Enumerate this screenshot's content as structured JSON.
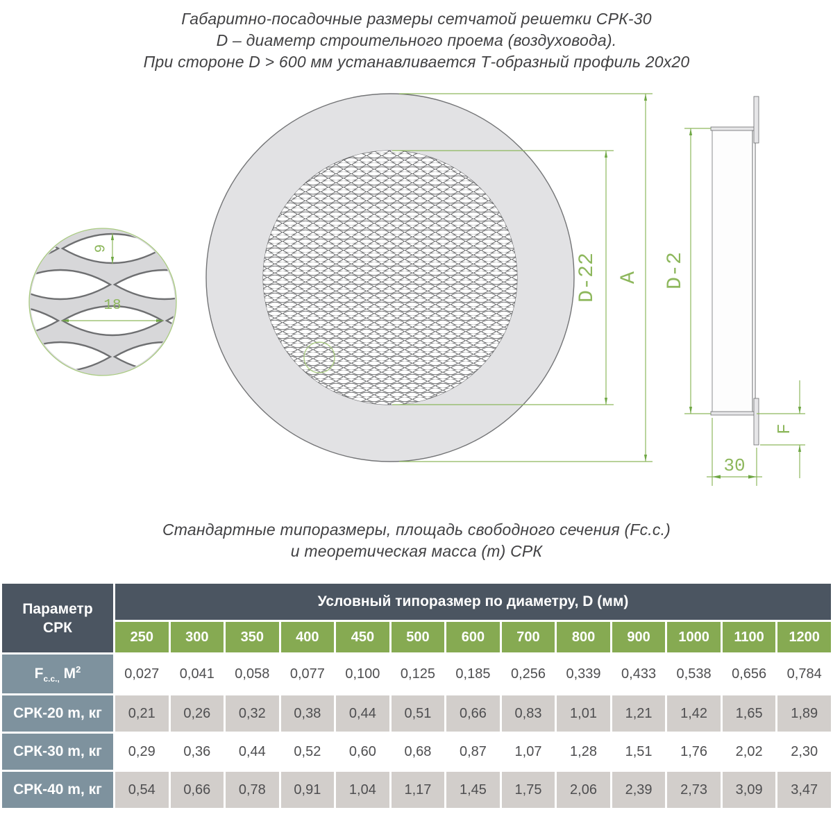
{
  "title": {
    "line1": "Габаритно-посадочные размеры сетчатой решетки СРК-30",
    "line2": "D – диаметр строительного проема (воздуховода).",
    "line3": "При стороне D > 600 мм устанавливается Т-образный профиль 20х20"
  },
  "subtitle": {
    "line1": "Стандартные типоразмеры, площадь свободного сечения (Fс.с.)",
    "line2": "и теоретическая масса (m) СРК"
  },
  "drawing": {
    "labels": {
      "mesh_cell_height": "9",
      "mesh_cell_width": "18",
      "inner_diameter": "D-22",
      "outer_diameter": "A",
      "duct_diameter": "D-2",
      "flange_height": "F",
      "depth": "30"
    },
    "colors": {
      "dimension_green": "#8db75c",
      "arrow_green": "#6fa744",
      "metal_gray": "#e2e2e4",
      "edge_gray": "#737476"
    }
  },
  "table": {
    "param_line1": "Параметр",
    "param_line2": "СРК",
    "group_header": "Условный типоразмер по диаметру, D (мм)",
    "sizes": [
      "250",
      "300",
      "350",
      "400",
      "450",
      "500",
      "600",
      "700",
      "800",
      "900",
      "1000",
      "1100",
      "1200"
    ],
    "rows": [
      {
        "label_base": "F",
        "label_sub": "с.с.,",
        "label_rest": " М",
        "label_sup": "2",
        "values": [
          "0,027",
          "0,041",
          "0,058",
          "0,077",
          "0,100",
          "0,125",
          "0,185",
          "0,256",
          "0,339",
          "0,433",
          "0,538",
          "0,656",
          "0,784"
        ]
      },
      {
        "label": "СРК-20 m, кг",
        "values": [
          "0,21",
          "0,26",
          "0,32",
          "0,38",
          "0,44",
          "0,51",
          "0,66",
          "0,83",
          "1,01",
          "1,21",
          "1,42",
          "1,65",
          "1,89"
        ]
      },
      {
        "label": "СРК-30 m, кг",
        "values": [
          "0,29",
          "0,36",
          "0,44",
          "0,52",
          "0,60",
          "0,68",
          "0,87",
          "1,07",
          "1,28",
          "1,51",
          "1,76",
          "2,02",
          "2,30"
        ]
      },
      {
        "label": "СРК-40 m, кг",
        "values": [
          "0,54",
          "0,66",
          "0,78",
          "0,91",
          "1,04",
          "1,17",
          "1,45",
          "1,75",
          "2,06",
          "2,39",
          "2,73",
          "3,09",
          "3,47"
        ]
      }
    ],
    "colors": {
      "header_dark": "#4b5561",
      "row_label_blue": "#7e929e",
      "size_green": "#86aa52",
      "stripe_gray": "#d2cecb"
    }
  }
}
